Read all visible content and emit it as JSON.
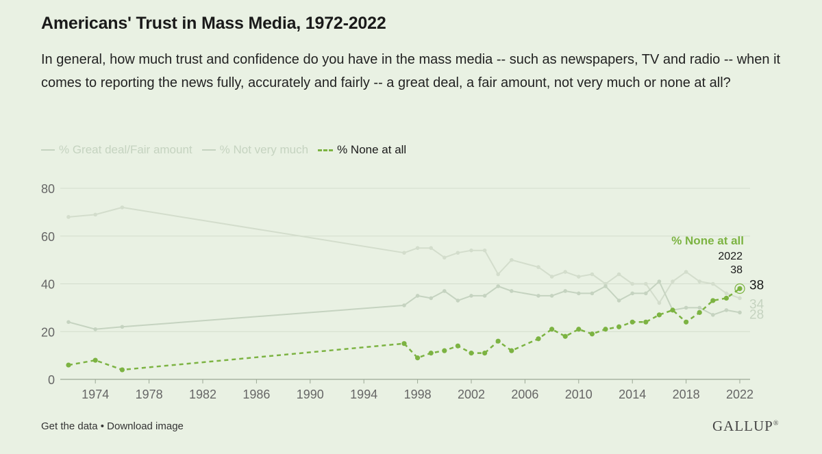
{
  "header": {
    "title": "Americans' Trust in Mass Media, 1972-2022",
    "subtitle": "In general, how much trust and confidence do you have in the mass media -- such as newspapers, TV and radio -- when it comes to reporting the news fully, accurately and fairly -- a great deal, a fair amount, not very much or none at all?"
  },
  "footer": {
    "get_data": "Get the data",
    "separator": "•",
    "download": "Download image",
    "brand": "GALLUP",
    "brand_mark": "®"
  },
  "colors": {
    "background": "#e9f1e3",
    "highlight": "#7cb342",
    "muted_series": "#c5d3c0",
    "grid": "#d3ddcc",
    "axis_text": "#666666"
  },
  "chart_data": {
    "type": "line",
    "title": "Americans' Trust in Mass Media, 1972-2022",
    "xlabel": "",
    "ylabel": "",
    "ylim": [
      0,
      80
    ],
    "yticks": [
      0,
      20,
      40,
      60,
      80
    ],
    "xlim": [
      1972,
      2022
    ],
    "xticks": [
      1974,
      1978,
      1982,
      1986,
      1990,
      1994,
      1998,
      2002,
      2006,
      2010,
      2014,
      2018,
      2022
    ],
    "grid": true,
    "legend_position": "top-left",
    "highlighted_series": "% None at all",
    "x": [
      1972,
      1974,
      1976,
      1997,
      1998,
      1999,
      2000,
      2001,
      2002,
      2003,
      2004,
      2005,
      2007,
      2008,
      2009,
      2010,
      2011,
      2012,
      2013,
      2014,
      2015,
      2016,
      2017,
      2018,
      2019,
      2020,
      2021,
      2022
    ],
    "series": [
      {
        "name": "% Great deal/Fair amount",
        "values": [
          68,
          69,
          72,
          53,
          55,
          55,
          51,
          53,
          54,
          54,
          44,
          50,
          47,
          43,
          45,
          43,
          44,
          40,
          44,
          40,
          40,
          32,
          41,
          45,
          41,
          40,
          36,
          34
        ],
        "end_label": "34"
      },
      {
        "name": "% Not very much",
        "values": [
          24,
          21,
          22,
          31,
          35,
          34,
          37,
          33,
          35,
          35,
          39,
          37,
          35,
          35,
          37,
          36,
          36,
          39,
          33,
          36,
          36,
          41,
          29,
          30,
          30,
          27,
          29,
          28
        ],
        "end_label": "28"
      },
      {
        "name": "% None at all",
        "values": [
          6,
          8,
          4,
          15,
          9,
          11,
          12,
          14,
          11,
          11,
          16,
          12,
          17,
          21,
          18,
          21,
          19,
          21,
          22,
          24,
          24,
          27,
          29,
          24,
          28,
          33,
          34,
          38
        ],
        "end_label": "38"
      }
    ],
    "annotation": {
      "series_label": "% None at all",
      "year": "2022",
      "value": "38"
    }
  }
}
